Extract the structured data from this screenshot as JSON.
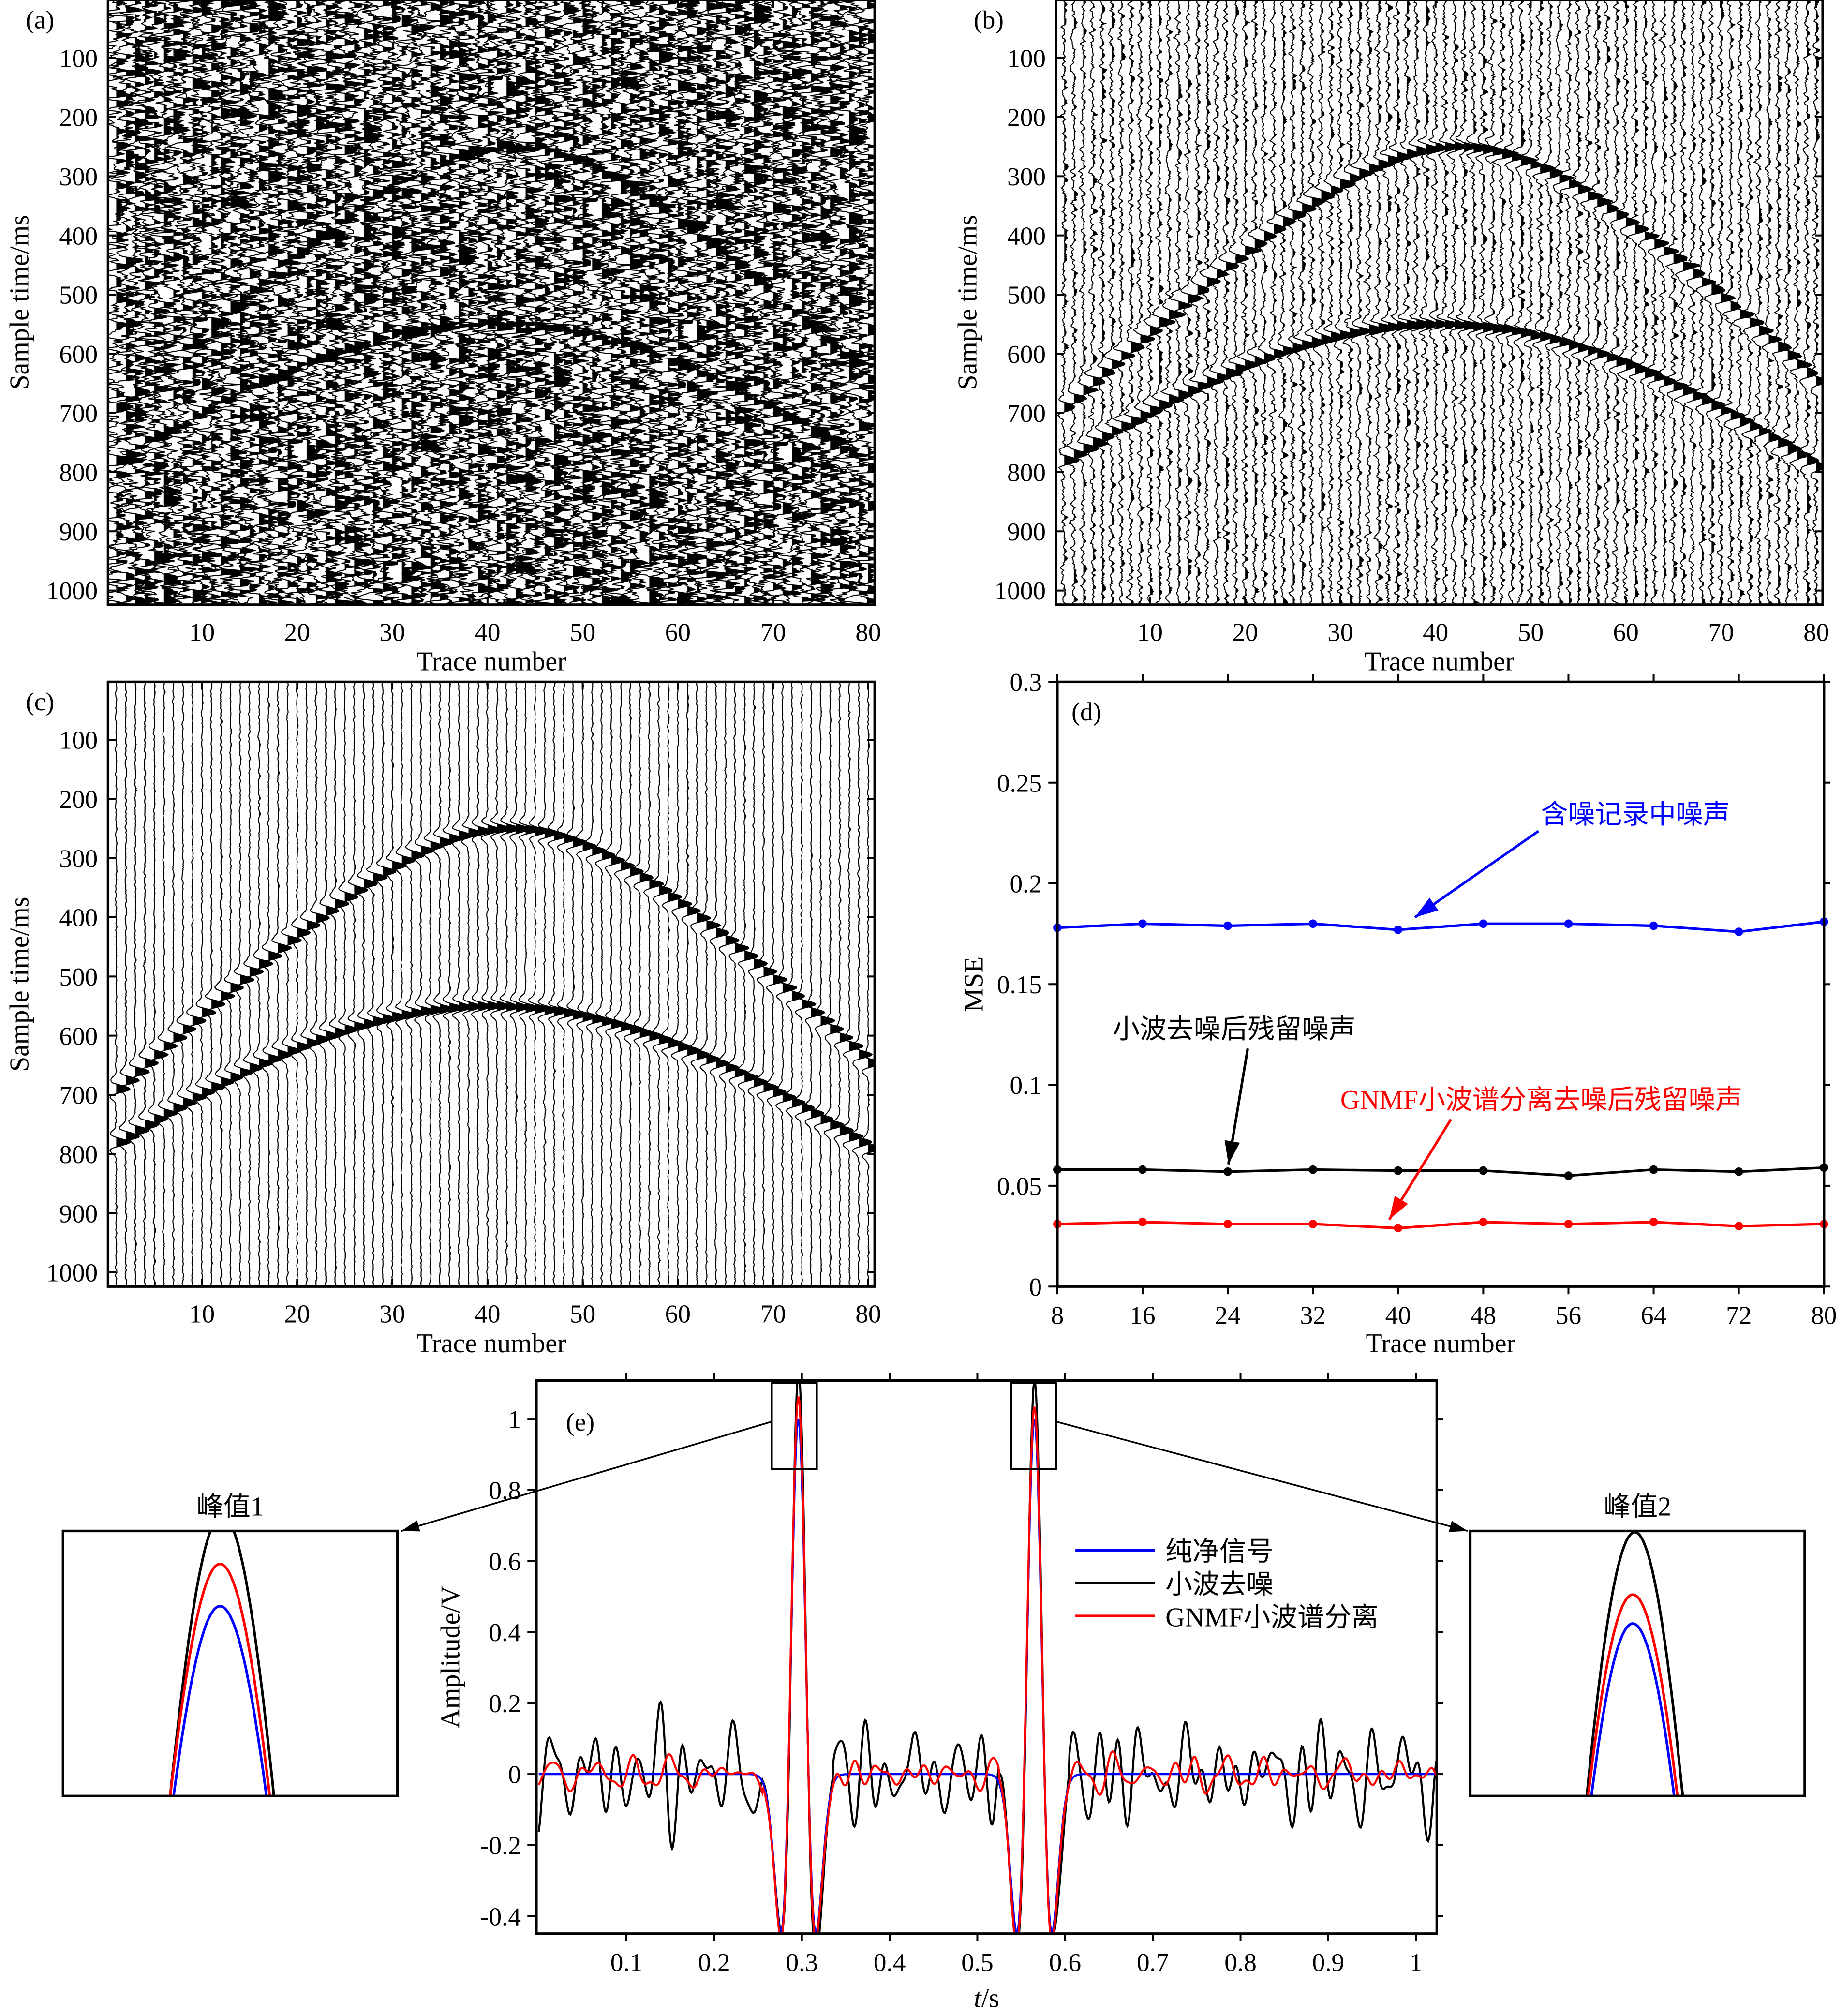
{
  "colors": {
    "clean": "#0000ff",
    "wavelet": "#000000",
    "gnmf": "#ff0000",
    "wiggle_fill": "#000000"
  },
  "seismic_panels": [
    {
      "label": "(a)",
      "content": "noisy record",
      "xlabel": "Trace number",
      "ylabel": "Sample time/ms",
      "xticks": [
        10,
        20,
        30,
        40,
        50,
        60,
        70,
        80
      ],
      "yticks": [
        100,
        200,
        300,
        400,
        500,
        600,
        700,
        800,
        900,
        1000
      ],
      "xlim": [
        0.2,
        80.8
      ],
      "ylim_ms": [
        0,
        1024
      ],
      "trace_count": 80,
      "noise_level": "high"
    },
    {
      "label": "(b)",
      "content": "wavelet denoised",
      "xlabel": "Trace number",
      "ylabel": "Sample time/ms",
      "xticks": [
        10,
        20,
        30,
        40,
        50,
        60,
        70,
        80
      ],
      "yticks": [
        100,
        200,
        300,
        400,
        500,
        600,
        700,
        800,
        900,
        1000
      ],
      "xlim": [
        0.2,
        80.8
      ],
      "ylim_ms": [
        0,
        1024
      ],
      "trace_count": 80,
      "noise_level": "medium"
    },
    {
      "label": "(c)",
      "content": "GNMF wavelet spectrum separation denoised",
      "xlabel": "Trace number",
      "ylabel": "Sample time/ms",
      "xticks": [
        10,
        20,
        30,
        40,
        50,
        60,
        70,
        80
      ],
      "yticks": [
        100,
        200,
        300,
        400,
        500,
        600,
        700,
        800,
        900,
        1000
      ],
      "xlim": [
        0.2,
        80.8
      ],
      "ylim_ms": [
        0,
        1024
      ],
      "trace_count": 80,
      "noise_level": "low"
    }
  ],
  "seismic_events": [
    {
      "apex_trace": 42,
      "apex_time_ms": 250,
      "time_at_trace_1_ms": 690,
      "time_at_trace_80_ms": 680
    },
    {
      "apex_trace": 40,
      "apex_time_ms": 550,
      "time_at_trace_1_ms": 780,
      "time_at_trace_80_ms": 770
    }
  ],
  "chart_data": [
    {
      "panel": "(d)",
      "type": "line",
      "xlabel": "Trace number",
      "ylabel": "MSE",
      "x": [
        8,
        16,
        24,
        32,
        40,
        48,
        56,
        64,
        72,
        80
      ],
      "xlim": [
        8,
        80
      ],
      "ylim": [
        0,
        0.3
      ],
      "xticks": [
        8,
        16,
        24,
        32,
        40,
        48,
        56,
        64,
        72,
        80
      ],
      "yticks": [
        0,
        0.05,
        0.1,
        0.15,
        0.2,
        0.25,
        0.3
      ],
      "ytick_labels": [
        "0",
        "0.05",
        "0.1",
        "0.15",
        "0.2",
        "0.25",
        "0.3"
      ],
      "grid": false,
      "series": [
        {
          "name": "含噪记录中噪声",
          "color": "#0000ff",
          "values": [
            0.178,
            0.18,
            0.179,
            0.18,
            0.177,
            0.18,
            0.18,
            0.179,
            0.176,
            0.181
          ]
        },
        {
          "name": "小波去噪后残留噪声",
          "color": "#000000",
          "values": [
            0.058,
            0.058,
            0.057,
            0.058,
            0.0575,
            0.0575,
            0.055,
            0.058,
            0.057,
            0.059
          ]
        },
        {
          "name": "GNMF小波谱分离去噪后残留噪声",
          "color": "#ff0000",
          "values": [
            0.031,
            0.032,
            0.031,
            0.031,
            0.029,
            0.032,
            0.031,
            0.032,
            0.03,
            0.031
          ]
        }
      ]
    },
    {
      "panel": "(e)",
      "type": "line",
      "xlabel_italic": "t",
      "xlabel_unit": "/s",
      "ylabel": "Amplitude/V",
      "xlim": [
        0,
        1.023
      ],
      "ylim": [
        -0.45,
        1.11
      ],
      "xticks": [
        0.1,
        0.2,
        0.3,
        0.4,
        0.5,
        0.6,
        0.7,
        0.8,
        0.9,
        1
      ],
      "xtick_labels": [
        "0.1",
        "0.2",
        "0.3",
        "0.4",
        "0.5",
        "0.6",
        "0.7",
        "0.8",
        "0.9",
        "1"
      ],
      "yticks": [
        -0.4,
        -0.2,
        0,
        0.2,
        0.4,
        0.6,
        0.8,
        1
      ],
      "ytick_labels": [
        "-0.4",
        "-0.2",
        "0",
        "0.2",
        "0.4",
        "0.6",
        "0.8",
        "1"
      ],
      "legend_position": "right-middle",
      "series": [
        {
          "name": "纯净信号",
          "color": "#0000ff",
          "peak_times_s": [
            0.296,
            0.565
          ],
          "peak_values": [
            1.0,
            1.0
          ],
          "trough_value": -0.446,
          "noise_rms": 0
        },
        {
          "name": "小波去噪",
          "color": "#000000",
          "peak_times_s": [
            0.296,
            0.565
          ],
          "peak_values": [
            1.09,
            1.09
          ],
          "noise_rms": 0.07
        },
        {
          "name": "GNMF小波谱分离",
          "color": "#ff0000",
          "peak_times_s": [
            0.296,
            0.565
          ],
          "peak_values": [
            1.06,
            1.03
          ],
          "noise_rms": 0.025
        }
      ],
      "insets": [
        {
          "title": "峰值1",
          "peak_time_s": 0.296,
          "ylim": [
            0.717,
            1.112
          ]
        },
        {
          "title": "峰值2",
          "peak_time_s": 0.565,
          "ylim": [
            0.795,
            1.11
          ]
        }
      ]
    }
  ]
}
